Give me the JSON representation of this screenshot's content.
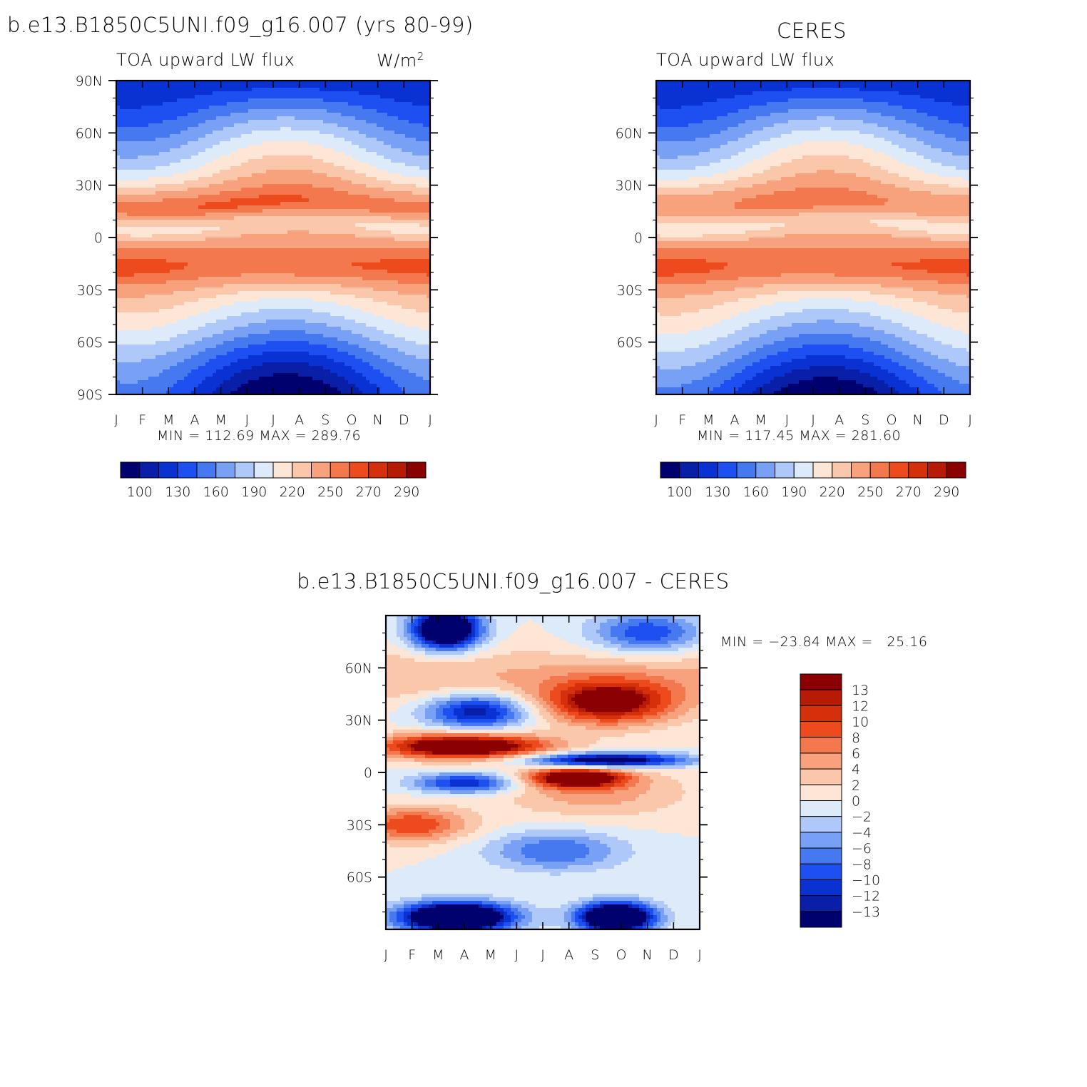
{
  "figure": {
    "panel_a": {
      "title": "b.e13.B1850C5UNI.f09_g16.007 (yrs 80-99)",
      "left_string": "TOA upward LW flux",
      "right_string_base": "W/m",
      "right_string_sup": "2",
      "minmax": "MIN = 112.69 MAX = 289.76"
    },
    "panel_b": {
      "title": "CERES",
      "left_string": "TOA upward LW flux",
      "minmax": "MIN = 117.45 MAX = 281.60"
    },
    "panel_c": {
      "title": "b.e13.B1850C5UNI.f09_g16.007 - CERES",
      "minmax": "MIN = −23.84 MAX =   25.16"
    }
  },
  "chart_data": [
    {
      "type": "heatmap",
      "title": "b.e13.B1850C5UNI.f09_g16.007 (yrs 80-99)",
      "subtitle": "TOA upward LW flux",
      "units": "W/m2",
      "x_ticklabels": [
        "J",
        "F",
        "M",
        "A",
        "M",
        "J",
        "J",
        "A",
        "S",
        "O",
        "N",
        "D",
        "J"
      ],
      "y_ticklabels": [
        "90N",
        "60N",
        "30N",
        "0",
        "30S",
        "60S",
        "90S"
      ],
      "y_tickvalues": [
        90,
        60,
        30,
        0,
        -30,
        -60,
        -90
      ],
      "ylim": [
        -90,
        90
      ],
      "min": 112.69,
      "max": 289.76,
      "colorbar_labels": [
        "100",
        "130",
        "160",
        "190",
        "220",
        "250",
        "270",
        "290"
      ],
      "colorbar_colors": [
        "#00006e",
        "#0a1fa8",
        "#0a32d2",
        "#1e4ff0",
        "#4678f0",
        "#78a0f5",
        "#afc8fa",
        "#dceafa",
        "#fde6d6",
        "#fbc7aa",
        "#f7a17d",
        "#f3784e",
        "#ed4b1e",
        "#d5300c",
        "#b71a05",
        "#8b0000"
      ],
      "grid": false
    },
    {
      "type": "heatmap",
      "title": "CERES",
      "subtitle": "TOA upward LW flux",
      "x_ticklabels": [
        "J",
        "F",
        "M",
        "A",
        "M",
        "J",
        "J",
        "A",
        "S",
        "O",
        "N",
        "D",
        "J"
      ],
      "y_ticklabels": [
        "60N",
        "30N",
        "0",
        "30S",
        "60S"
      ],
      "y_tickvalues": [
        60,
        30,
        0,
        -30,
        -60
      ],
      "ylim": [
        -90,
        90
      ],
      "min": 117.45,
      "max": 281.6,
      "colorbar_labels": [
        "100",
        "130",
        "160",
        "190",
        "220",
        "250",
        "270",
        "290"
      ],
      "grid": false
    },
    {
      "type": "heatmap",
      "title": "b.e13.B1850C5UNI.f09_g16.007 - CERES",
      "x_ticklabels": [
        "J",
        "F",
        "M",
        "A",
        "M",
        "J",
        "J",
        "A",
        "S",
        "O",
        "N",
        "D",
        "J"
      ],
      "y_ticklabels": [
        "60N",
        "30N",
        "0",
        "30S",
        "60S"
      ],
      "y_tickvalues": [
        60,
        30,
        0,
        -30,
        -60
      ],
      "ylim": [
        -90,
        90
      ],
      "min": -23.84,
      "max": 25.16,
      "colorbar_labels": [
        "13",
        "12",
        "10",
        "8",
        "6",
        "4",
        "2",
        "0",
        "−2",
        "−4",
        "−6",
        "−8",
        "−10",
        "−12",
        "−13"
      ],
      "colorbar_colors": [
        "#8b0000",
        "#b71a05",
        "#d5300c",
        "#ed4b1e",
        "#f3784e",
        "#f7a17d",
        "#fbc7aa",
        "#fde6d6",
        "#dceafa",
        "#afc8fa",
        "#78a0f5",
        "#4678f0",
        "#1e4ff0",
        "#0a32d2",
        "#0a1fa8",
        "#00006e"
      ],
      "grid": false
    }
  ]
}
